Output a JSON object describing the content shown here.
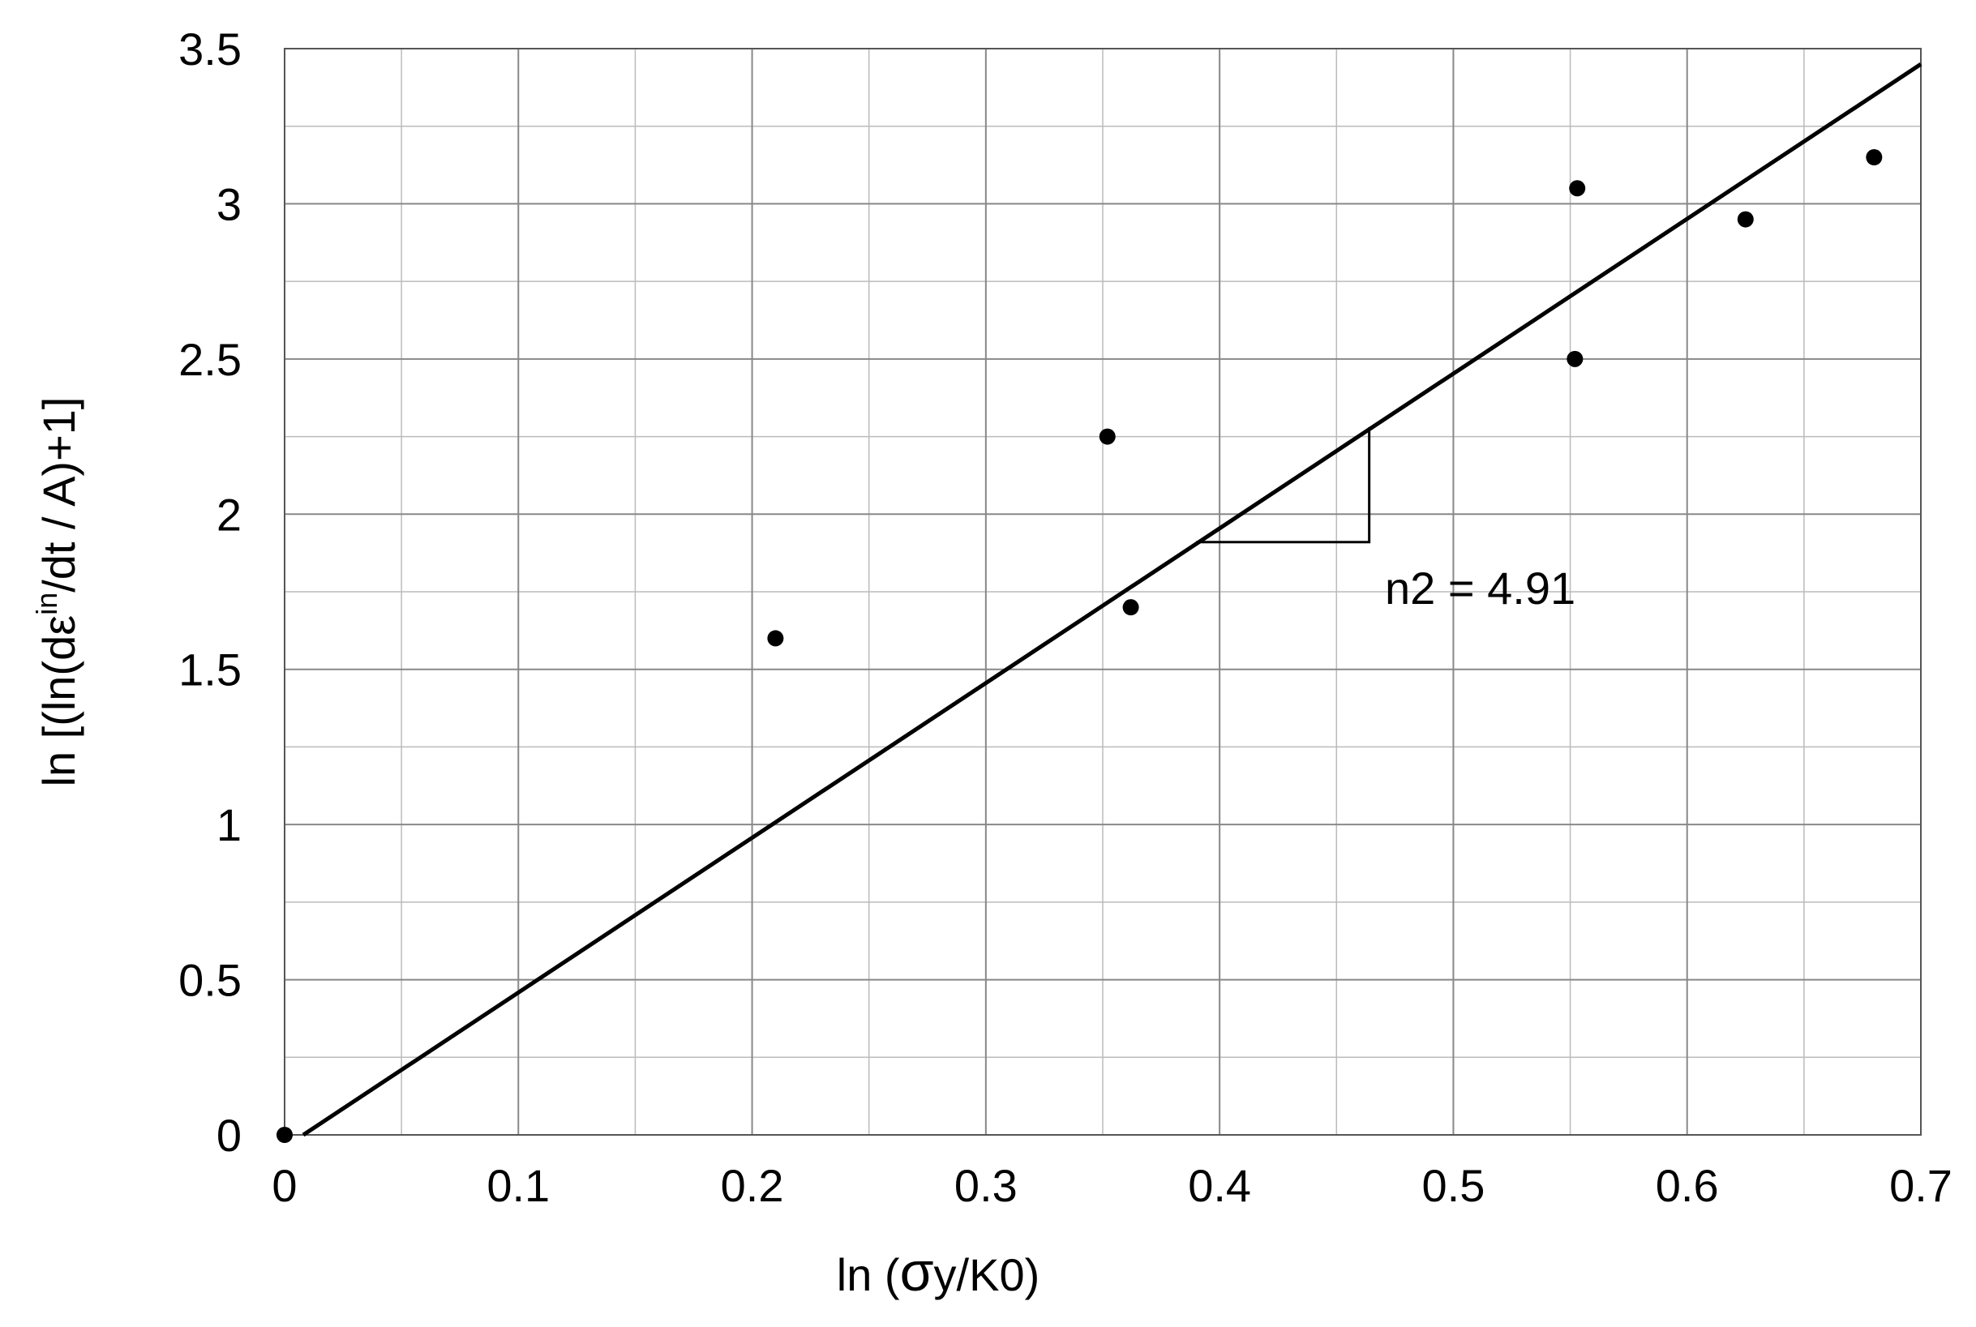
{
  "chart_data": {
    "type": "scatter",
    "xlabel_prefix": "ln (",
    "xlabel_sigma": "σ",
    "xlabel_suffix": "y/K0)",
    "ylabel_prefix": "ln [(ln(dε",
    "ylabel_sup": "in",
    "ylabel_suffix": "/dt / A)+1]",
    "xlim": [
      0,
      0.7
    ],
    "ylim": [
      0,
      3.5
    ],
    "x_ticks": [
      "0",
      "0.1",
      "0.2",
      "0.3",
      "0.4",
      "0.5",
      "0.6",
      "0.7"
    ],
    "y_ticks": [
      "0",
      "0.5",
      "1",
      "1.5",
      "2",
      "2.5",
      "3",
      "3.5"
    ],
    "grid": true,
    "points": [
      {
        "x": 0.0,
        "y": 0.0
      },
      {
        "x": 0.21,
        "y": 1.6
      },
      {
        "x": 0.352,
        "y": 2.25
      },
      {
        "x": 0.362,
        "y": 1.7
      },
      {
        "x": 0.552,
        "y": 2.5
      },
      {
        "x": 0.553,
        "y": 3.05
      },
      {
        "x": 0.625,
        "y": 2.95
      },
      {
        "x": 0.68,
        "y": 3.15
      }
    ],
    "fit_line": {
      "x1": 0.008,
      "y1": 0.0,
      "x2": 0.7,
      "y2": 3.45
    },
    "slope_triangle": {
      "x1": 0.39,
      "x2": 0.464,
      "y_low": 1.91,
      "y_high": 2.28
    },
    "annotation": "n2 = 4.91"
  }
}
